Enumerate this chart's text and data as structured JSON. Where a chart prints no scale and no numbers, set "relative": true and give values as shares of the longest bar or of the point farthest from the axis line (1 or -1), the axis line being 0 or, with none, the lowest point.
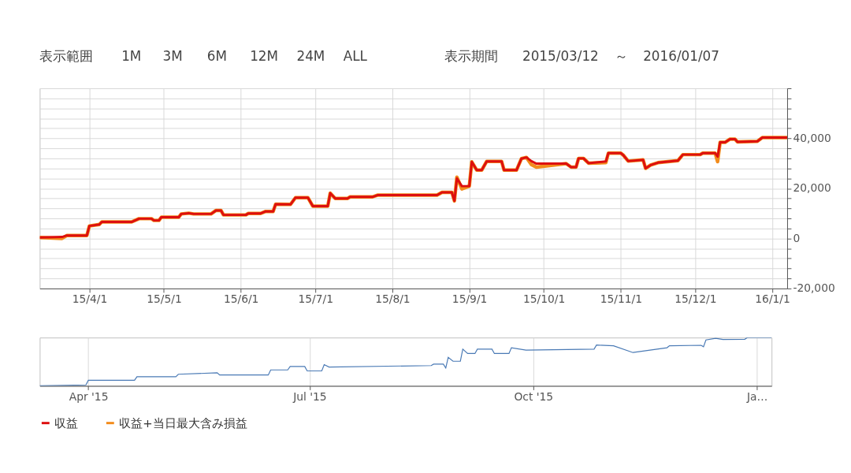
{
  "chart_data": [
    {
      "type": "line",
      "annotations": [
        "表示範囲",
        "1M",
        "3M",
        "6M",
        "12M",
        "24M",
        "ALL",
        "表示期間",
        "2015/03/12",
        "～",
        "2016/01/07"
      ],
      "x": [
        "2015-03-12",
        "2015-03-21",
        "2015-03-23",
        "2015-03-31",
        "2015-04-01",
        "2015-04-05",
        "2015-04-06",
        "2015-04-18",
        "2015-04-21",
        "2015-04-26",
        "2015-04-27",
        "2015-04-29",
        "2015-04-30",
        "2015-05-07",
        "2015-05-08",
        "2015-05-11",
        "2015-05-13",
        "2015-05-20",
        "2015-05-22",
        "2015-05-24",
        "2015-05-25",
        "2015-06-03",
        "2015-06-04",
        "2015-06-09",
        "2015-06-11",
        "2015-06-14",
        "2015-06-15",
        "2015-06-21",
        "2015-06-23",
        "2015-06-28",
        "2015-06-30",
        "2015-07-06",
        "2015-07-07",
        "2015-07-09",
        "2015-07-14",
        "2015-07-15",
        "2015-07-24",
        "2015-07-26",
        "2015-08-19",
        "2015-08-21",
        "2015-08-25",
        "2015-08-26",
        "2015-08-27",
        "2015-08-29",
        "2015-09-01",
        "2015-09-02",
        "2015-09-04",
        "2015-09-06",
        "2015-09-08",
        "2015-09-14",
        "2015-09-15",
        "2015-09-20",
        "2015-09-22",
        "2015-09-24",
        "2015-09-26",
        "2015-09-28",
        "2015-10-10",
        "2015-10-12",
        "2015-10-14",
        "2015-10-15",
        "2015-10-17",
        "2015-10-19",
        "2015-10-26",
        "2015-10-27",
        "2015-11-01",
        "2015-11-02",
        "2015-11-04",
        "2015-11-10",
        "2015-11-11",
        "2015-11-13",
        "2015-11-16",
        "2015-11-24",
        "2015-11-26",
        "2015-12-03",
        "2015-12-04",
        "2015-12-09",
        "2015-12-10",
        "2015-12-11",
        "2015-12-13",
        "2015-12-15",
        "2015-12-17",
        "2015-12-18",
        "2015-12-26",
        "2015-12-28",
        "2016-01-07"
      ],
      "series": [
        {
          "name": "収益",
          "color": "#dd0f0f",
          "values": [
            400,
            600,
            1200,
            1200,
            5000,
            5600,
            6600,
            6600,
            7900,
            7900,
            7200,
            7200,
            8500,
            8500,
            9800,
            10100,
            9800,
            9800,
            11200,
            11200,
            9400,
            9400,
            10000,
            10000,
            10800,
            10800,
            13700,
            13600,
            16300,
            16300,
            12900,
            12900,
            18100,
            16000,
            16000,
            16600,
            16600,
            17300,
            17300,
            18400,
            18400,
            15000,
            24000,
            20900,
            20900,
            30600,
            27300,
            27300,
            30800,
            30800,
            27300,
            27300,
            31900,
            32400,
            30900,
            29900,
            29900,
            28500,
            28500,
            32000,
            32000,
            30100,
            30800,
            34100,
            34100,
            33300,
            30900,
            31400,
            28000,
            29300,
            30300,
            31100,
            33500,
            33500,
            34100,
            34100,
            32700,
            38400,
            38400,
            39700,
            39700,
            38600,
            38800,
            40300,
            40300
          ]
        },
        {
          "name": "収益+当日最大含み損益",
          "color": "#f28c1c",
          "values": [
            400,
            0,
            1200,
            1200,
            5000,
            5600,
            6600,
            6600,
            7900,
            7900,
            7200,
            7200,
            8500,
            8500,
            9800,
            10100,
            9800,
            9800,
            11200,
            11200,
            9400,
            9400,
            10000,
            10000,
            10800,
            10800,
            13700,
            13600,
            16300,
            16300,
            12900,
            12900,
            18100,
            16000,
            16000,
            16600,
            16600,
            17300,
            17300,
            18400,
            18400,
            15000,
            24500,
            19800,
            20900,
            30600,
            27300,
            27300,
            30800,
            30800,
            27300,
            27300,
            31900,
            32400,
            29500,
            28500,
            29900,
            28500,
            28500,
            32000,
            32000,
            30100,
            30300,
            34100,
            34100,
            33300,
            30900,
            31400,
            28000,
            29300,
            30300,
            31100,
            33500,
            33500,
            34100,
            34100,
            30700,
            38400,
            38400,
            39700,
            39700,
            38600,
            38800,
            40300,
            40300
          ]
        }
      ],
      "xlim": [
        "2015-03-12",
        "2016-01-07"
      ],
      "xticks": [
        {
          "value": "2015-04-01",
          "label": "15/4/1"
        },
        {
          "value": "2015-05-01",
          "label": "15/5/1"
        },
        {
          "value": "2015-06-01",
          "label": "15/6/1"
        },
        {
          "value": "2015-07-01",
          "label": "15/7/1"
        },
        {
          "value": "2015-08-01",
          "label": "15/8/1"
        },
        {
          "value": "2015-09-01",
          "label": "15/9/1"
        },
        {
          "value": "2015-10-01",
          "label": "15/10/1"
        },
        {
          "value": "2015-11-01",
          "label": "15/11/1"
        },
        {
          "value": "2015-12-01",
          "label": "15/12/1"
        },
        {
          "value": "2016-01-01",
          "label": "16/1/1"
        }
      ],
      "ylim": [
        -20000,
        60000
      ],
      "yticks": [
        {
          "value": -20000,
          "label": "-20,000"
        },
        {
          "value": -16000,
          "label": null
        },
        {
          "value": -12000,
          "label": null
        },
        {
          "value": -8000,
          "label": null
        },
        {
          "value": -4000,
          "label": null
        },
        {
          "value": 0,
          "label": "0"
        },
        {
          "value": 4000,
          "label": null
        },
        {
          "value": 8000,
          "label": null
        },
        {
          "value": 12000,
          "label": null
        },
        {
          "value": 16000,
          "label": null
        },
        {
          "value": 20000,
          "label": "20,000"
        },
        {
          "value": 24000,
          "label": null
        },
        {
          "value": 28000,
          "label": null
        },
        {
          "value": 32000,
          "label": null
        },
        {
          "value": 36000,
          "label": null
        },
        {
          "value": 40000,
          "label": "40,000"
        },
        {
          "value": 44000,
          "label": null
        },
        {
          "value": 48000,
          "label": null
        },
        {
          "value": 52000,
          "label": null
        },
        {
          "value": 56000,
          "label": null
        },
        {
          "value": 60000,
          "label": null
        }
      ],
      "grid": true,
      "legend": "bottom",
      "marker": "none",
      "line_style": "solid"
    },
    {
      "type": "line",
      "relative": true,
      "tick_labels": "x",
      "grid": "x",
      "legend": false,
      "x": [
        "2015-03-12",
        "2015-03-31",
        "2015-04-01",
        "2015-04-20",
        "2015-04-21",
        "2015-05-07",
        "2015-05-08",
        "2015-05-24",
        "2015-05-25",
        "2015-06-14",
        "2015-06-15",
        "2015-06-22",
        "2015-06-23",
        "2015-06-29",
        "2015-06-30",
        "2015-07-06",
        "2015-07-07",
        "2015-07-09",
        "2015-08-20",
        "2015-08-21",
        "2015-08-25",
        "2015-08-26",
        "2015-08-27",
        "2015-08-29",
        "2015-09-01",
        "2015-09-02",
        "2015-09-04",
        "2015-09-07",
        "2015-09-08",
        "2015-09-14",
        "2015-09-15",
        "2015-09-21",
        "2015-09-22",
        "2015-09-28",
        "2015-10-26",
        "2015-10-27",
        "2015-11-03",
        "2015-11-11",
        "2015-11-25",
        "2015-11-26",
        "2015-12-09",
        "2015-12-10",
        "2015-12-11",
        "2015-12-15",
        "2015-12-18",
        "2015-12-27",
        "2015-12-28",
        "2016-01-07"
      ],
      "series": [
        {
          "color": "#4a7ab5",
          "values": [
            0,
            0.02,
            0.115,
            0.115,
            0.19,
            0.19,
            0.24,
            0.27,
            0.225,
            0.225,
            0.33,
            0.33,
            0.4,
            0.4,
            0.31,
            0.31,
            0.44,
            0.39,
            0.42,
            0.45,
            0.45,
            0.37,
            0.59,
            0.51,
            0.51,
            0.76,
            0.67,
            0.67,
            0.76,
            0.76,
            0.67,
            0.67,
            0.79,
            0.74,
            0.76,
            0.845,
            0.83,
            0.69,
            0.79,
            0.83,
            0.84,
            0.81,
            0.95,
            0.985,
            0.96,
            0.965,
            1,
            1
          ]
        }
      ],
      "xlim": [
        "2015-03-12",
        "2016-01-07"
      ],
      "xticks": [
        {
          "value": "2015-04-01",
          "label": "Apr '15"
        },
        {
          "value": "2015-07-01",
          "label": "Jul '15"
        },
        {
          "value": "2015-10-01",
          "label": "Oct '15"
        },
        {
          "value": "2016-01-01",
          "label": "Ja…"
        }
      ]
    }
  ]
}
